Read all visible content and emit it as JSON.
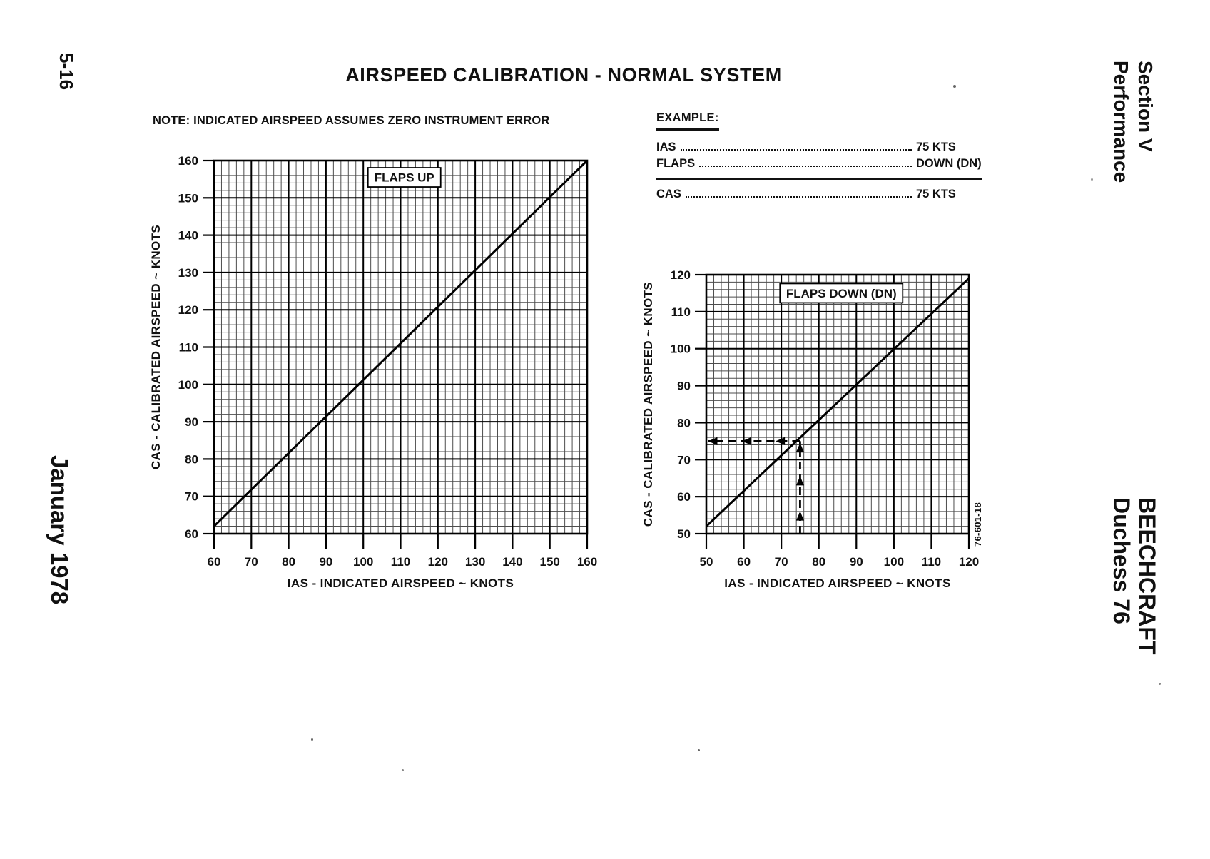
{
  "page": {
    "title": "AIRSPEED CALIBRATION - NORMAL SYSTEM",
    "note": "NOTE: INDICATED AIRSPEED ASSUMES ZERO INSTRUMENT ERROR",
    "page_number": "5-16",
    "issue_date": "January 1978",
    "section_header": {
      "line1": "Section V",
      "line2": "Performance"
    },
    "brand_footer": {
      "line1": "BEECHCRAFT",
      "line2": "Duchess 76"
    },
    "figure_number": "76-601-18"
  },
  "example": {
    "heading": "EXAMPLE:",
    "rows": [
      {
        "label": "IAS",
        "value": "75 KTS"
      },
      {
        "label": "FLAPS",
        "value": "DOWN (DN)"
      }
    ],
    "result": {
      "label": "CAS",
      "value": "75 KTS"
    }
  },
  "chart_data": [
    {
      "type": "line",
      "title": "FLAPS UP",
      "xlabel": "IAS - INDICATED AIRSPEED ~ KNOTS",
      "ylabel": "CAS - CALIBRATED AIRSPEED ~ KNOTS",
      "xlim": [
        60,
        160
      ],
      "ylim": [
        60,
        160
      ],
      "xticks": [
        60,
        70,
        80,
        90,
        100,
        110,
        120,
        130,
        140,
        150,
        160
      ],
      "yticks": [
        60,
        70,
        80,
        90,
        100,
        110,
        120,
        130,
        140,
        150,
        160
      ],
      "minor_step": 2,
      "grid": true,
      "legend_position": "none",
      "label_pos": [
        111,
        155.5
      ],
      "series": [
        {
          "name": "airspeed-calibration",
          "points": [
            [
              60,
              62
            ],
            [
              160,
              160
            ]
          ]
        }
      ]
    },
    {
      "type": "line",
      "title": "FLAPS DOWN (DN)",
      "xlabel": "IAS - INDICATED AIRSPEED ~ KNOTS",
      "ylabel": "CAS - CALIBRATED AIRSPEED ~ KNOTS",
      "xlim": [
        50,
        120
      ],
      "ylim": [
        50,
        120
      ],
      "xticks": [
        50,
        60,
        70,
        80,
        90,
        100,
        110,
        120
      ],
      "yticks": [
        50,
        60,
        70,
        80,
        90,
        100,
        110,
        120
      ],
      "minor_step": 2,
      "grid": true,
      "legend_position": "none",
      "label_pos": [
        86,
        115
      ],
      "series": [
        {
          "name": "airspeed-calibration",
          "points": [
            [
              50,
              52
            ],
            [
              120,
              119
            ]
          ]
        }
      ],
      "example_trace": {
        "ias": 75,
        "cas": 75,
        "up_arrow_ys": [
          54.5,
          64,
          73
        ],
        "left_arrow_xs": [
          52,
          61,
          70
        ]
      }
    }
  ]
}
